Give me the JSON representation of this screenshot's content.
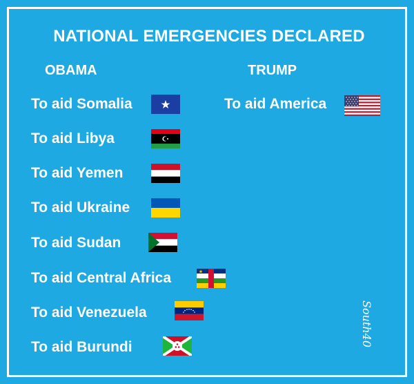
{
  "title": "NATIONAL EMERGENCIES DECLARED",
  "columns": {
    "left_header": "OBAMA",
    "right_header": "TRUMP"
  },
  "obama_items": [
    {
      "label": "To aid Somalia",
      "flag": "somalia-flag-icon"
    },
    {
      "label": "To aid Libya",
      "flag": "libya-flag-icon"
    },
    {
      "label": "To aid Yemen",
      "flag": "yemen-flag-icon"
    },
    {
      "label": "To aid Ukraine",
      "flag": "ukraine-flag-icon"
    },
    {
      "label": "To aid Sudan",
      "flag": "sudan-flag-icon"
    },
    {
      "label": "To aid Central Africa",
      "flag": "central-african-republic-flag-icon"
    },
    {
      "label": "To aid Venezuela",
      "flag": "venezuela-flag-icon"
    },
    {
      "label": "To aid Burundi",
      "flag": "burundi-flag-icon"
    }
  ],
  "trump_items": [
    {
      "label": "To aid America",
      "flag": "usa-flag-icon"
    }
  ],
  "signature": "South40",
  "colors": {
    "background": "#1fa9e2",
    "text": "#ffffff"
  }
}
